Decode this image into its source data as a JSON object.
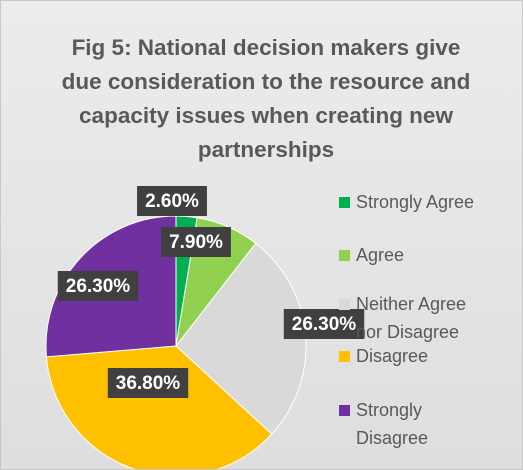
{
  "chart_data": {
    "type": "pie",
    "title": "Fig 5: National decision makers give due consideration to the resource and capacity issues when creating new partnerships",
    "categories": [
      "Strongly Agree",
      "Agree",
      "Neither Agree nor Disagree",
      "Disagree",
      "Strongly Disagree"
    ],
    "values": [
      2.6,
      7.9,
      26.3,
      36.8,
      26.3
    ],
    "value_labels": [
      "2.60%",
      "7.90%",
      "26.30%",
      "36.80%",
      "26.30%"
    ],
    "colors": [
      "#00b050",
      "#92d050",
      "#d9d9d9",
      "#ffc000",
      "#7030a0"
    ],
    "legend": "right"
  }
}
